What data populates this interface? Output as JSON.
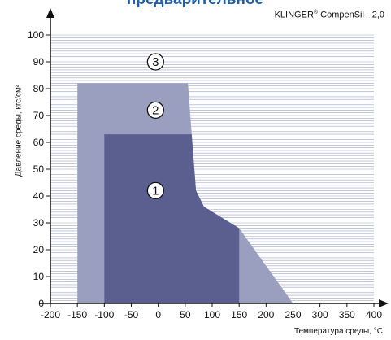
{
  "header": {
    "title": "предварительное",
    "brand": "KLINGER",
    "brand_mark": "®",
    "brand_rest": " CompenSil - 2,0"
  },
  "chart_data": {
    "type": "area",
    "title": "",
    "xlabel": "Температура среды, °C",
    "ylabel": "Давление среды, кгс/см²",
    "xlim": [
      -200,
      400
    ],
    "ylim": [
      0,
      100
    ],
    "xticks": [
      -200,
      -150,
      -100,
      -50,
      0,
      50,
      100,
      150,
      200,
      250,
      300,
      350,
      400
    ],
    "yticks": [
      0,
      10,
      20,
      30,
      40,
      50,
      60,
      70,
      80,
      90,
      100
    ],
    "grid": "horizontal lines",
    "regions": [
      {
        "name": "3",
        "color": "#ffffff",
        "points": [
          [
            -150,
            0
          ],
          [
            400,
            0
          ],
          [
            400,
            100
          ],
          [
            -150,
            100
          ]
        ]
      },
      {
        "name": "2",
        "color": "#9a9fc0",
        "points": [
          [
            -150,
            0
          ],
          [
            -150,
            82
          ],
          [
            55,
            82
          ],
          [
            62,
            63
          ],
          [
            70,
            42
          ],
          [
            85,
            36
          ],
          [
            150,
            28
          ],
          [
            250,
            0
          ]
        ]
      },
      {
        "name": "1",
        "color": "#5a5f90",
        "points": [
          [
            -100,
            0
          ],
          [
            -100,
            63
          ],
          [
            62,
            63
          ],
          [
            70,
            42
          ],
          [
            85,
            36
          ],
          [
            150,
            28
          ],
          [
            150,
            0
          ]
        ]
      }
    ],
    "region_labels": [
      {
        "text": "3",
        "x": -5,
        "y": 90
      },
      {
        "text": "2",
        "x": -5,
        "y": 72
      },
      {
        "text": "1",
        "x": -5,
        "y": 42
      }
    ]
  },
  "colors": {
    "grid": "#9aa6c4",
    "axis": "#111111",
    "title": "#1f5fa8"
  }
}
